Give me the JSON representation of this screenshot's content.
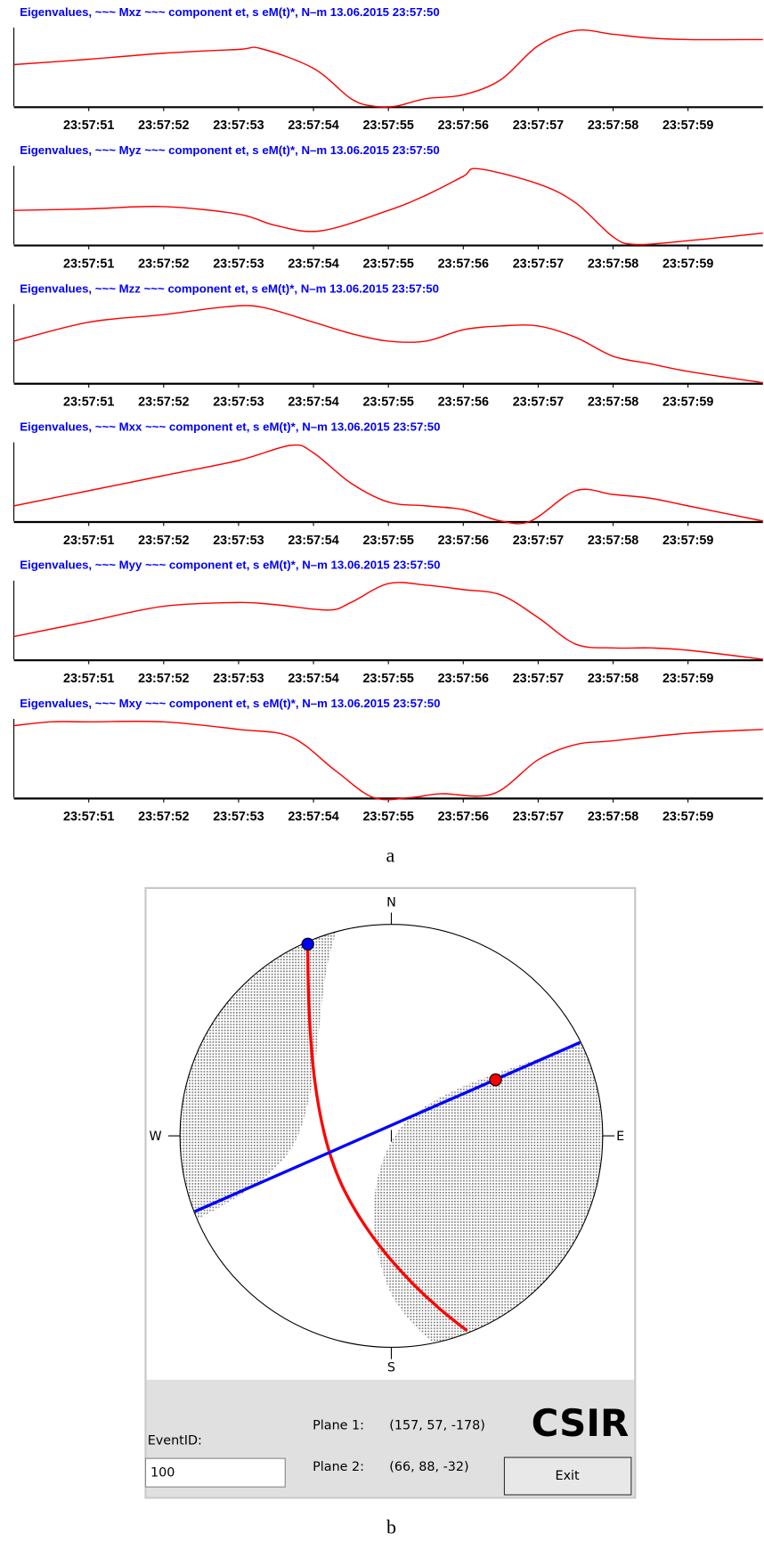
{
  "chart_data": [
    {
      "type": "line",
      "title": "Eigenvalues, ~~~ Mxz ~~~ component  et, s  eM(t)*, N–m 13.06.2015  23:57:50",
      "color": "#ff0000",
      "xlim": [
        50,
        60
      ],
      "ylim": [
        0,
        1
      ],
      "x": [
        50,
        51,
        52,
        53,
        53.3,
        54,
        54.5,
        54.8,
        55.1,
        55.5,
        56,
        56.5,
        57,
        57.5,
        58,
        58.5,
        59,
        60
      ],
      "values": [
        0.55,
        0.62,
        0.7,
        0.75,
        0.76,
        0.5,
        0.1,
        0,
        0,
        0.1,
        0.15,
        0.35,
        0.8,
        1,
        0.95,
        0.9,
        0.88,
        0.88
      ],
      "xticks": [
        {
          "value": 51,
          "label": "23:57:51"
        },
        {
          "value": 52,
          "label": "23:57:52"
        },
        {
          "value": 53,
          "label": "23:57:53"
        },
        {
          "value": 54,
          "label": "23:57:54"
        },
        {
          "value": 55,
          "label": "23:57:55"
        },
        {
          "value": 56,
          "label": "23:57:56"
        },
        {
          "value": 57,
          "label": "23:57:57"
        },
        {
          "value": 58,
          "label": "23:57:58"
        },
        {
          "value": 59,
          "label": "23:57:59"
        }
      ]
    },
    {
      "type": "line",
      "title": "Eigenvalues, ~~~ Myz ~~~ component  et, s  eM(t)*, N–m 13.06.2015  23:57:50",
      "color": "#ff0000",
      "xlim": [
        50,
        60
      ],
      "ylim": [
        0,
        1
      ],
      "x": [
        50,
        51,
        52,
        53,
        53.5,
        54.1,
        55,
        55.5,
        56,
        56.2,
        57,
        57.5,
        58,
        58.3,
        59,
        60
      ],
      "values": [
        0.45,
        0.47,
        0.5,
        0.4,
        0.25,
        0.18,
        0.45,
        0.65,
        0.9,
        1,
        0.8,
        0.55,
        0.1,
        0,
        0.05,
        0.15
      ],
      "xticks": [
        {
          "value": 51,
          "label": "23:57:51"
        },
        {
          "value": 52,
          "label": "23:57:52"
        },
        {
          "value": 53,
          "label": "23:57:53"
        },
        {
          "value": 54,
          "label": "23:57:54"
        },
        {
          "value": 55,
          "label": "23:57:55"
        },
        {
          "value": 56,
          "label": "23:57:56"
        },
        {
          "value": 57,
          "label": "23:57:57"
        },
        {
          "value": 58,
          "label": "23:57:58"
        },
        {
          "value": 59,
          "label": "23:57:59"
        }
      ]
    },
    {
      "type": "line",
      "title": "Eigenvalues, ~~~ Mzz ~~~ component  et, s  eM(t)*, N–m 13.06.2015  23:57:50",
      "color": "#ff0000",
      "xlim": [
        50,
        60
      ],
      "ylim": [
        0,
        1
      ],
      "x": [
        50,
        51,
        52,
        52.8,
        53.3,
        54,
        54.5,
        55,
        55.5,
        56,
        56.5,
        57,
        57.5,
        58,
        58.5,
        59,
        60
      ],
      "values": [
        0.55,
        0.8,
        0.9,
        1,
        1,
        0.8,
        0.65,
        0.55,
        0.55,
        0.7,
        0.75,
        0.75,
        0.6,
        0.35,
        0.25,
        0.15,
        0
      ],
      "xticks": [
        {
          "value": 51,
          "label": "23:57:51"
        },
        {
          "value": 52,
          "label": "23:57:52"
        },
        {
          "value": 53,
          "label": "23:57:53"
        },
        {
          "value": 54,
          "label": "23:57:54"
        },
        {
          "value": 55,
          "label": "23:57:55"
        },
        {
          "value": 56,
          "label": "23:57:56"
        },
        {
          "value": 57,
          "label": "23:57:57"
        },
        {
          "value": 58,
          "label": "23:57:58"
        },
        {
          "value": 59,
          "label": "23:57:59"
        }
      ]
    },
    {
      "type": "line",
      "title": "Eigenvalues, ~~~ Mxx ~~~ component  et, s  eM(t)*, N–m 13.06.2015  23:57:50",
      "color": "#ff0000",
      "xlim": [
        50,
        60
      ],
      "ylim": [
        0,
        1
      ],
      "x": [
        50,
        51,
        52,
        53,
        53.7,
        54,
        54.5,
        55,
        55.5,
        56,
        56.5,
        56.9,
        57.5,
        58,
        58.5,
        59,
        60
      ],
      "values": [
        0.2,
        0.4,
        0.6,
        0.8,
        1,
        0.9,
        0.5,
        0.25,
        0.2,
        0.15,
        0,
        0,
        0.4,
        0.35,
        0.3,
        0.2,
        0
      ],
      "xticks": [
        {
          "value": 51,
          "label": "23:57:51"
        },
        {
          "value": 52,
          "label": "23:57:52"
        },
        {
          "value": 53,
          "label": "23:57:53"
        },
        {
          "value": 54,
          "label": "23:57:54"
        },
        {
          "value": 55,
          "label": "23:57:55"
        },
        {
          "value": 56,
          "label": "23:57:56"
        },
        {
          "value": 57,
          "label": "23:57:57"
        },
        {
          "value": 58,
          "label": "23:57:58"
        },
        {
          "value": 59,
          "label": "23:57:59"
        }
      ]
    },
    {
      "type": "line",
      "title": "Eigenvalues, ~~~ Myy ~~~ component  et, s  eM(t)*, N–m 13.06.2015  23:57:50",
      "color": "#ff0000",
      "xlim": [
        50,
        60
      ],
      "ylim": [
        0,
        1
      ],
      "x": [
        50,
        51,
        52,
        53,
        53.5,
        54.2,
        54.5,
        55,
        55.5,
        56,
        56.5,
        57,
        57.5,
        58,
        58.5,
        59,
        60
      ],
      "values": [
        0.3,
        0.5,
        0.7,
        0.75,
        0.72,
        0.65,
        0.75,
        1,
        0.98,
        0.92,
        0.85,
        0.55,
        0.2,
        0.15,
        0.15,
        0.12,
        0
      ],
      "xticks": [
        {
          "value": 51,
          "label": "23:57:51"
        },
        {
          "value": 52,
          "label": "23:57:52"
        },
        {
          "value": 53,
          "label": "23:57:53"
        },
        {
          "value": 54,
          "label": "23:57:54"
        },
        {
          "value": 55,
          "label": "23:57:55"
        },
        {
          "value": 56,
          "label": "23:57:56"
        },
        {
          "value": 57,
          "label": "23:57:57"
        },
        {
          "value": 58,
          "label": "23:57:58"
        },
        {
          "value": 59,
          "label": "23:57:59"
        }
      ]
    },
    {
      "type": "line",
      "title": "Eigenvalues, ~~~ Mxy ~~~ component  et, s  eM(t)*, N–m 13.06.2015  23:57:50",
      "color": "#ff0000",
      "xlim": [
        50,
        60
      ],
      "ylim": [
        0,
        1
      ],
      "x": [
        50,
        50.5,
        51,
        52,
        53,
        53.7,
        54.3,
        54.8,
        55.3,
        55.7,
        56.4,
        57,
        57.5,
        58,
        59,
        60
      ],
      "values": [
        0.95,
        1,
        1,
        1,
        0.9,
        0.8,
        0.35,
        0,
        0,
        0.05,
        0.05,
        0.5,
        0.7,
        0.75,
        0.85,
        0.9
      ],
      "xticks": [
        {
          "value": 51,
          "label": "23:57:51"
        },
        {
          "value": 52,
          "label": "23:57:52"
        },
        {
          "value": 53,
          "label": "23:57:53"
        },
        {
          "value": 54,
          "label": "23:57:54"
        },
        {
          "value": 55,
          "label": "23:57:55"
        },
        {
          "value": 56,
          "label": "23:57:56"
        },
        {
          "value": 57,
          "label": "23:57:57"
        },
        {
          "value": 58,
          "label": "23:57:58"
        },
        {
          "value": 59,
          "label": "23:57:59"
        }
      ]
    }
  ],
  "caption_a": "a",
  "focal_mechanism": {
    "north": "N",
    "south": "S",
    "east": "E",
    "west": "W",
    "event_id_label": "EventID:",
    "event_id": "100",
    "plane1_label": "Plane 1:",
    "plane1": "(157, 57, -178)",
    "plane2_label": "Plane 2:",
    "plane2": "(66, 88, -32)",
    "logo": "CSIR",
    "exit": "Exit"
  },
  "caption_b": "b"
}
